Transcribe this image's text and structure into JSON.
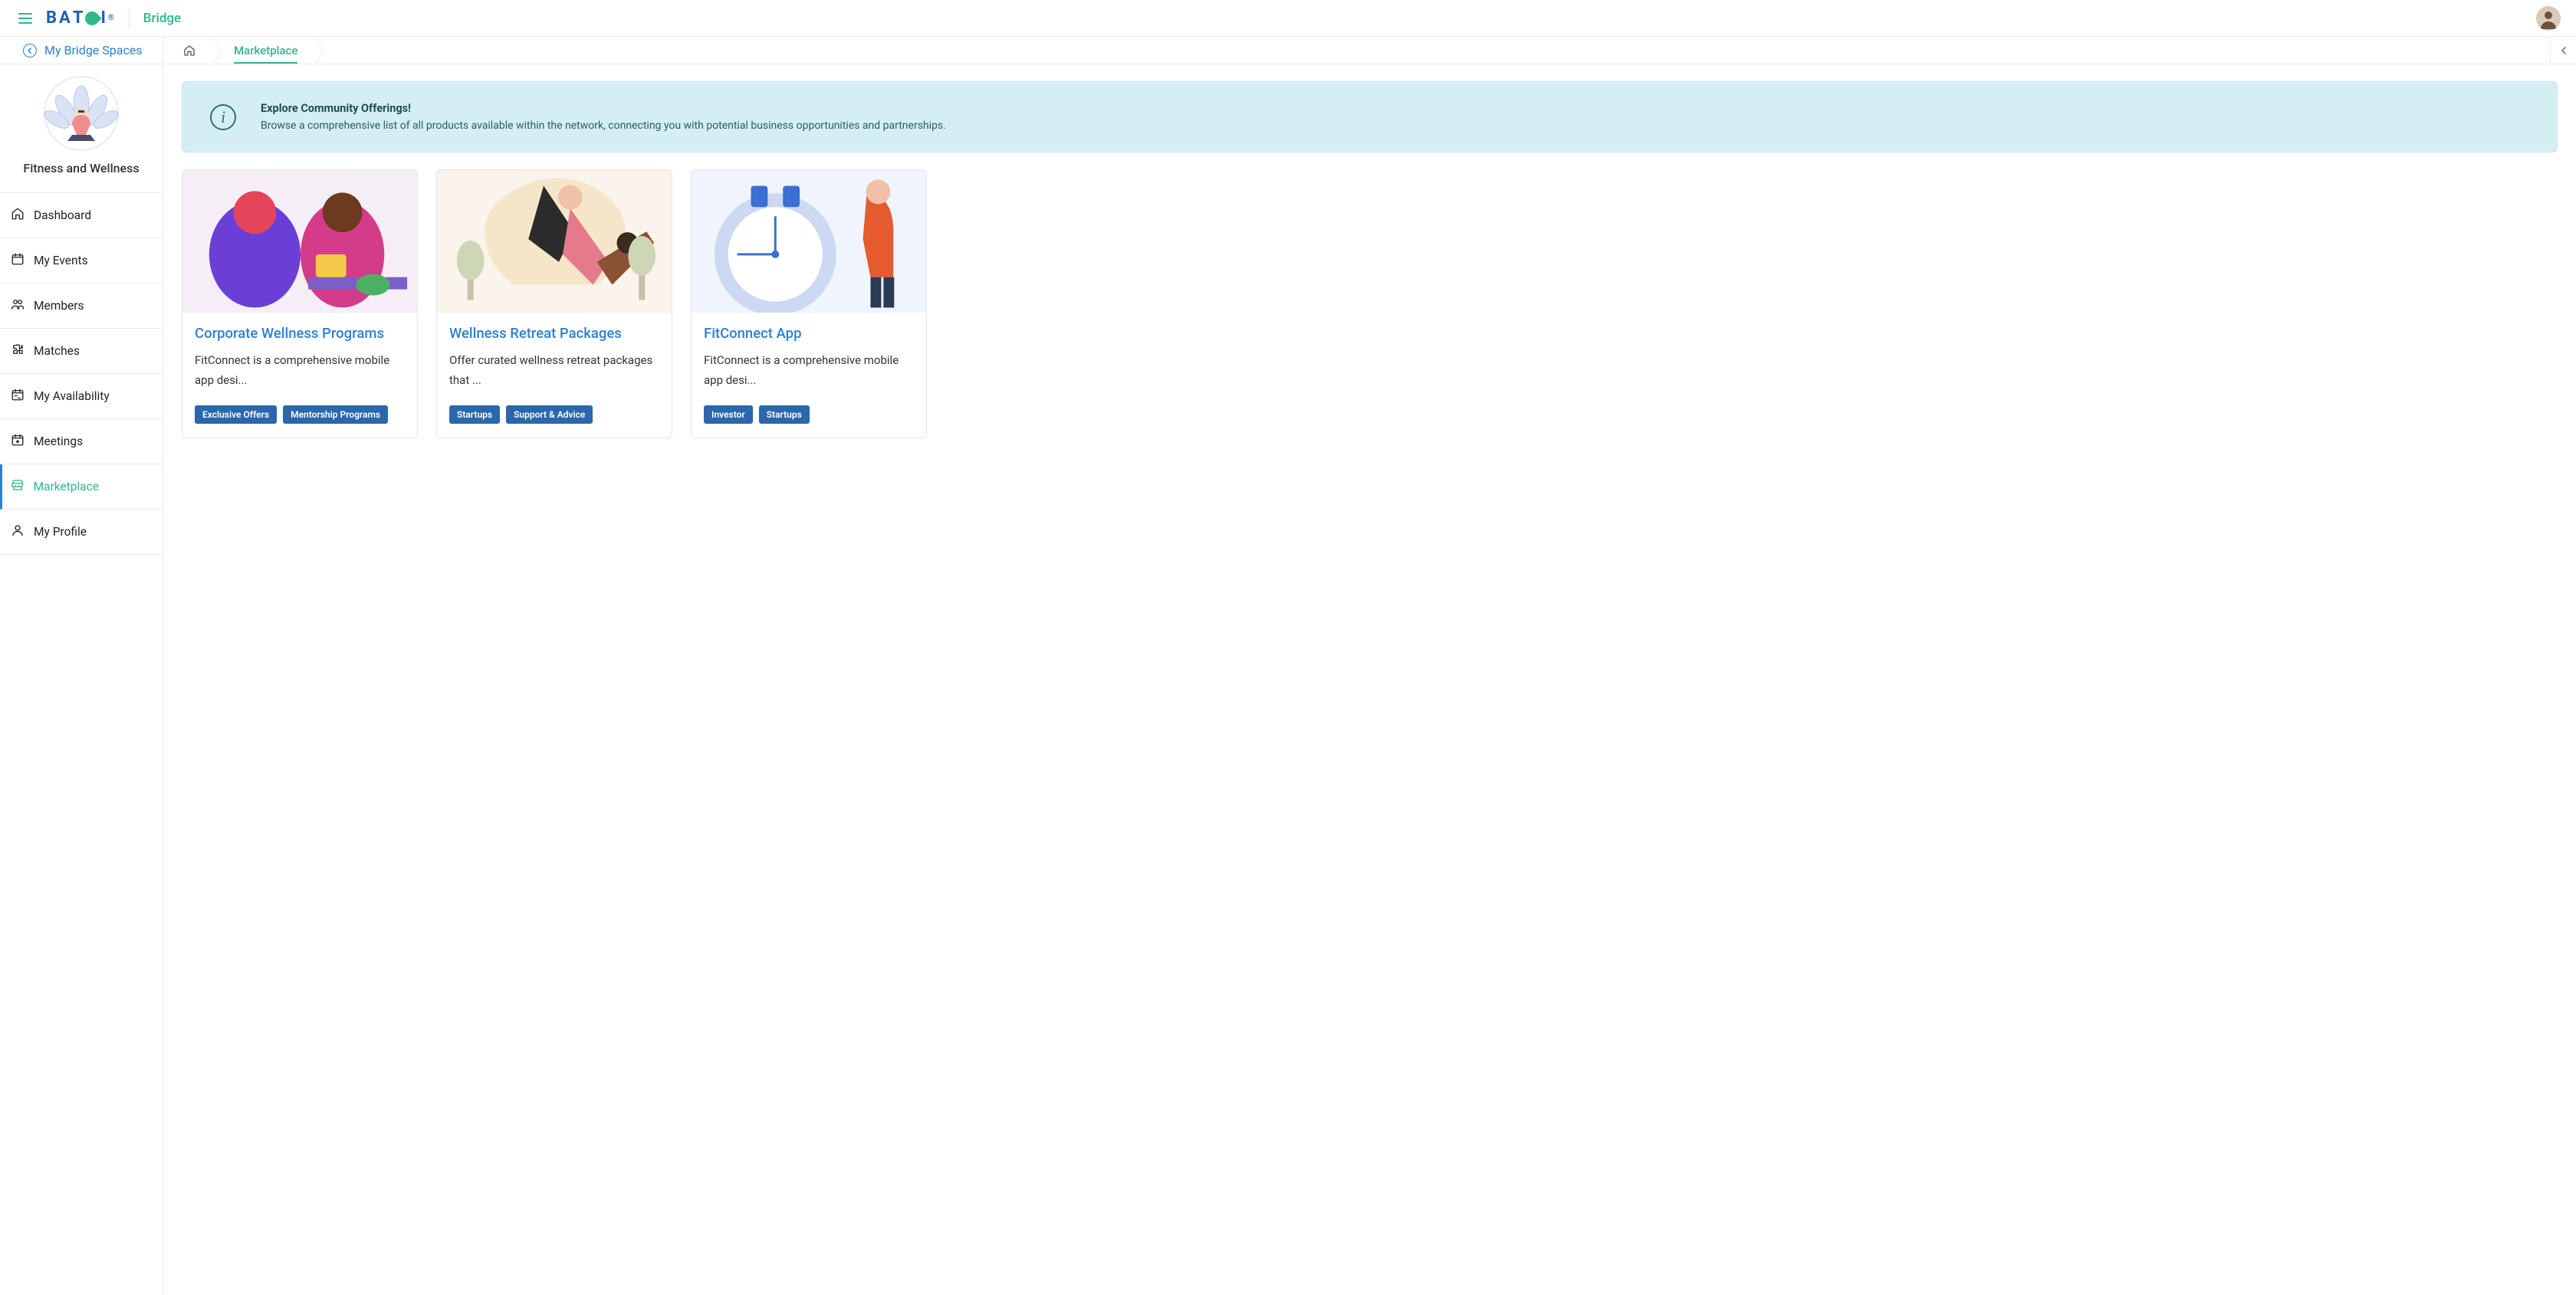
{
  "app": {
    "name": "Bridge"
  },
  "header": {
    "spaces_label": "My Bridge Spaces"
  },
  "breadcrumb": {
    "current": "Marketplace"
  },
  "sidebar": {
    "space_title": "Fitness and Wellness",
    "items": [
      {
        "label": "Dashboard",
        "icon": "home"
      },
      {
        "label": "My Events",
        "icon": "calendar"
      },
      {
        "label": "Members",
        "icon": "people"
      },
      {
        "label": "Matches",
        "icon": "puzzle"
      },
      {
        "label": "My Availability",
        "icon": "calendar-range"
      },
      {
        "label": "Meetings",
        "icon": "calendar-dot"
      },
      {
        "label": "Marketplace",
        "icon": "shop"
      },
      {
        "label": "My Profile",
        "icon": "person"
      }
    ],
    "active_index": 6
  },
  "banner": {
    "title": "Explore Community Offerings!",
    "body": "Browse a comprehensive list of all products available within the network, connecting you with potential business opportunities and partnerships."
  },
  "cards": [
    {
      "title": "Corporate Wellness Programs",
      "desc": "FitConnect is a comprehensive mobile app desi...",
      "tags": [
        "Exclusive Offers",
        "Mentorship Programs"
      ]
    },
    {
      "title": "Wellness Retreat Packages",
      "desc": "Offer curated wellness retreat packages that ...",
      "tags": [
        "Startups",
        "Support & Advice"
      ]
    },
    {
      "title": "FitConnect App",
      "desc": "FitConnect is a comprehensive mobile app desi...",
      "tags": [
        "Investor",
        "Startups"
      ]
    }
  ],
  "style": {
    "accent_green": "#2fb78e",
    "accent_blue": "#2f80d0",
    "tag_bg": "#2a67ad",
    "banner_bg": "#d5eef4",
    "banner_border": "#c3e6ee",
    "border": "#ececec"
  }
}
